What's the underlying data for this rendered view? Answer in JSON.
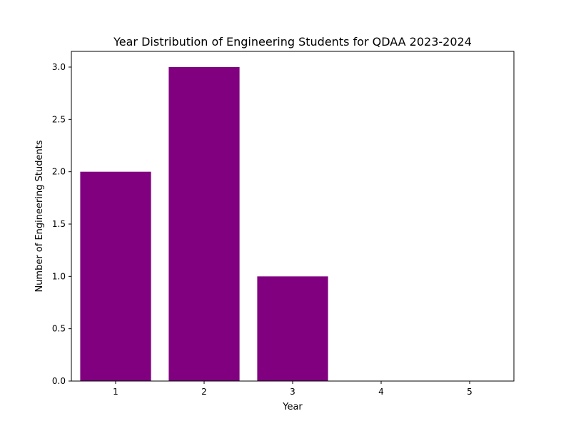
{
  "chart_data": {
    "type": "bar",
    "title": "Year Distribution of Engineering Students for QDAA 2023-2024",
    "xlabel": "Year",
    "ylabel": "Number of Engineering Students",
    "categories": [
      "1",
      "2",
      "3",
      "4",
      "5"
    ],
    "values": [
      2,
      3,
      1,
      0,
      0
    ],
    "ylim": [
      0,
      3.15
    ],
    "yticks": [
      "0.0",
      "0.5",
      "1.0",
      "1.5",
      "2.0",
      "2.5",
      "3.0"
    ],
    "grid": false,
    "legend": "none",
    "bar_color": "#800080"
  }
}
